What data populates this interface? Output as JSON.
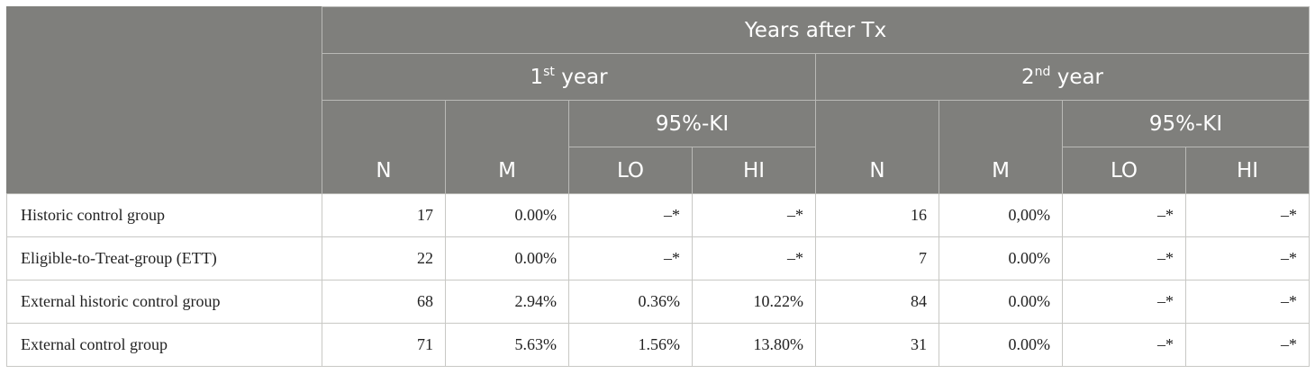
{
  "header": {
    "years_label": "Years after Tx",
    "year1": {
      "num": "1",
      "sup": "st",
      "rest": " year"
    },
    "year2": {
      "num": "2",
      "sup": "nd",
      "rest": " year"
    },
    "ci_label": "95%-KI",
    "col_n": "N",
    "col_m": "M",
    "col_lo": "LO",
    "col_hi": "HI"
  },
  "rows": [
    {
      "label": "Historic control group",
      "y1_n": "17",
      "y1_m": "0.00%",
      "y1_lo": "–*",
      "y1_hi": "–*",
      "y2_n": "16",
      "y2_m": "0,00%",
      "y2_lo": "–*",
      "y2_hi": "–*"
    },
    {
      "label": "Eligible-to-Treat-group (ETT)",
      "y1_n": "22",
      "y1_m": "0.00%",
      "y1_lo": "–*",
      "y1_hi": "–*",
      "y2_n": "7",
      "y2_m": "0.00%",
      "y2_lo": "–*",
      "y2_hi": "–*"
    },
    {
      "label": "External historic control group",
      "y1_n": "68",
      "y1_m": "2.94%",
      "y1_lo": "0.36%",
      "y1_hi": "10.22%",
      "y2_n": "84",
      "y2_m": "0.00%",
      "y2_lo": "–*",
      "y2_hi": "–*"
    },
    {
      "label": "External control group",
      "y1_n": "71",
      "y1_m": "5.63%",
      "y1_lo": "1.56%",
      "y1_hi": "13.80%",
      "y2_n": "31",
      "y2_m": "0.00%",
      "y2_lo": "–*",
      "y2_hi": "–*"
    }
  ]
}
